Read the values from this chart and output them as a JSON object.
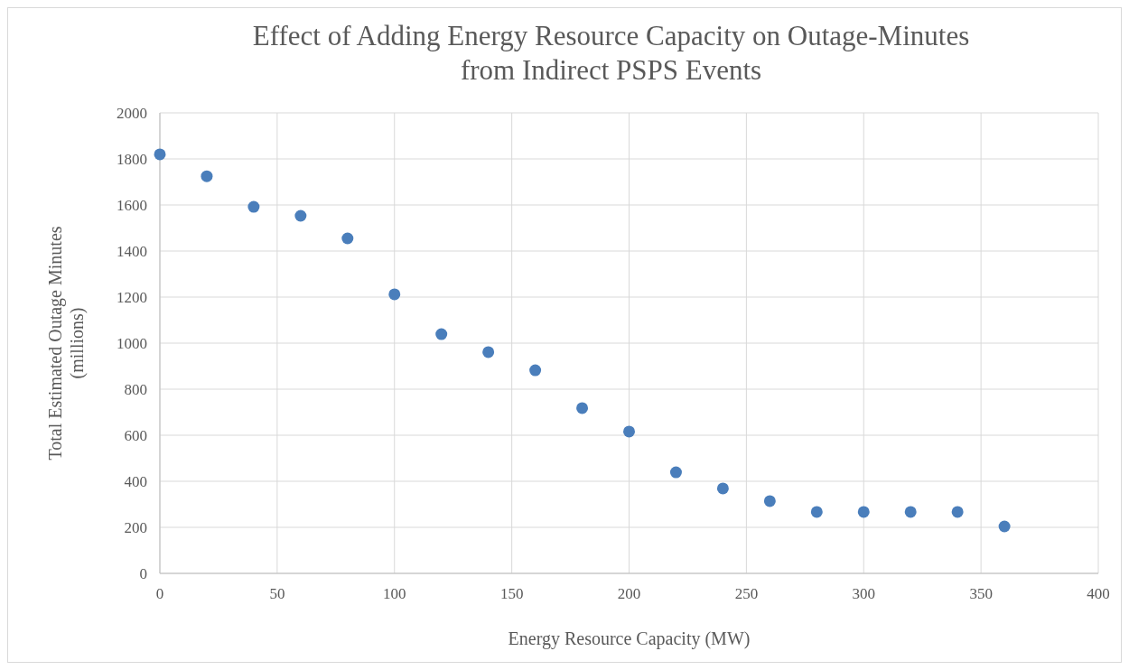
{
  "chart_data": {
    "type": "scatter",
    "title": "Effect of Adding Energy Resource Capacity on Outage-Minutes\nfrom Indirect PSPS Events",
    "xlabel": "Energy Resource Capacity (MW)",
    "ylabel": "Total Estimated Outage Minutes\n(millions)",
    "x": [
      0,
      20,
      40,
      60,
      80,
      100,
      120,
      140,
      160,
      180,
      200,
      220,
      240,
      260,
      280,
      300,
      320,
      340,
      360
    ],
    "series": [
      {
        "color": "#4a7ebb",
        "values": [
          1820,
          1725,
          1592,
          1553,
          1455,
          1212,
          1039,
          961,
          882,
          718,
          616,
          439,
          369,
          314,
          267,
          267,
          267,
          267,
          204
        ]
      }
    ],
    "xlim": [
      0,
      400
    ],
    "xticks": [
      0,
      50,
      100,
      150,
      200,
      250,
      300,
      350,
      400
    ],
    "ylim": [
      0,
      2000
    ],
    "yticks": [
      0,
      200,
      400,
      600,
      800,
      1000,
      1200,
      1400,
      1600,
      1800,
      2000
    ],
    "grid": true,
    "marker": "circle"
  }
}
